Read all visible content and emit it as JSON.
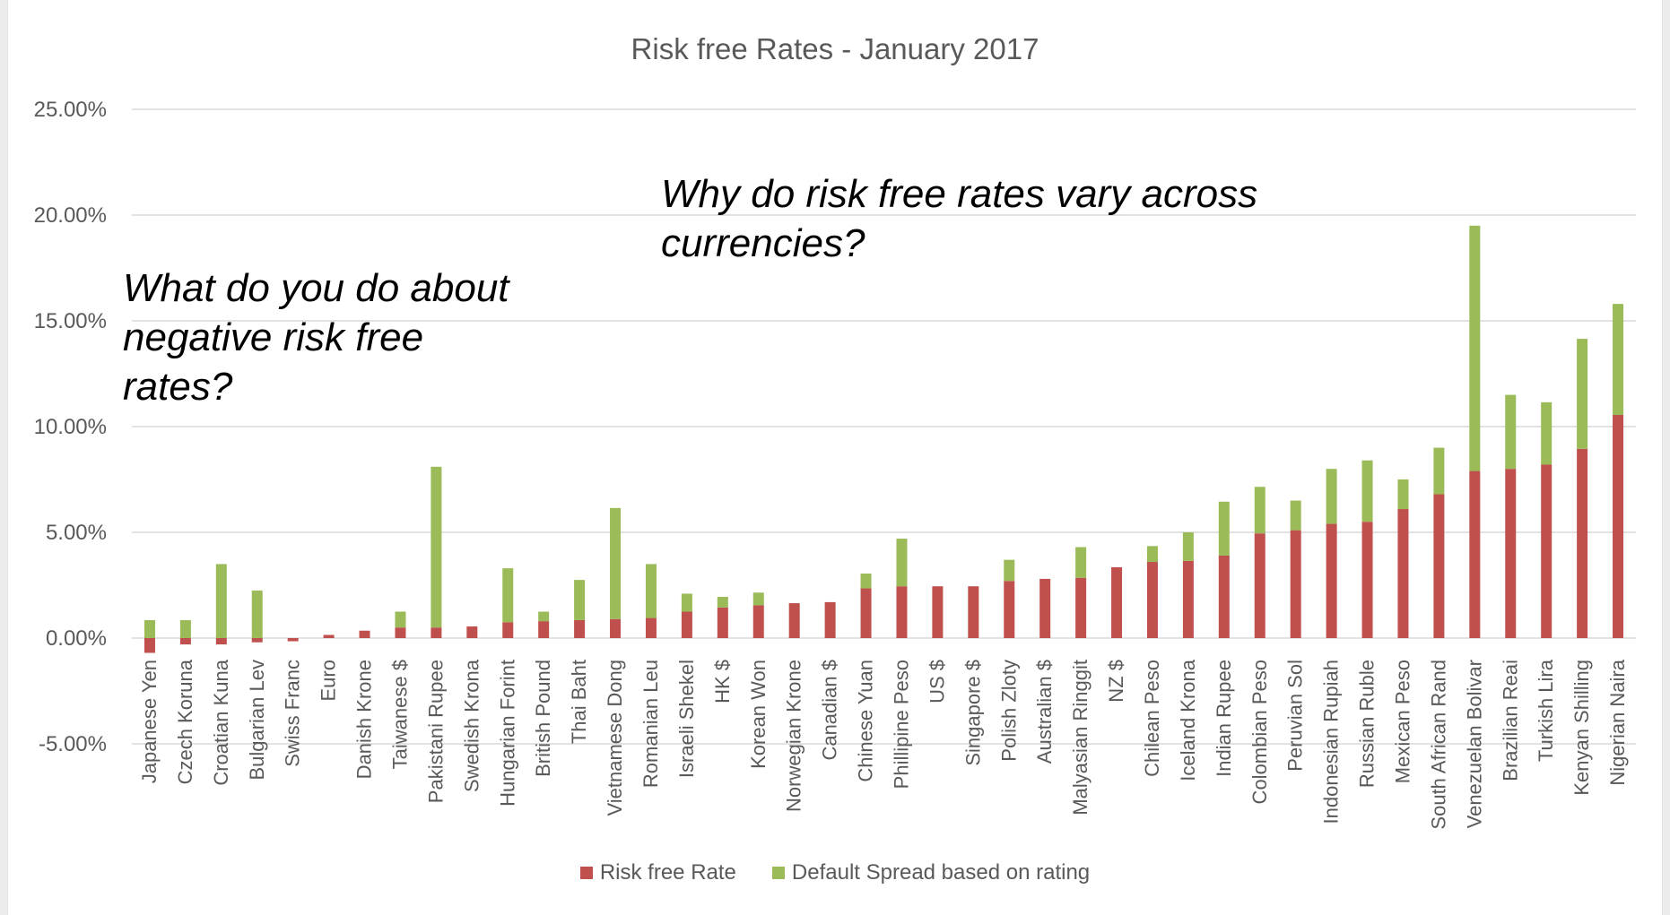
{
  "chart_data": {
    "type": "bar",
    "stacked": true,
    "title": "Risk free Rates - January 2017",
    "xlabel": "",
    "ylabel": "",
    "ylim": [
      -5,
      25
    ],
    "yticks": [
      25,
      20,
      15,
      10,
      5,
      0,
      -5
    ],
    "ytick_labels": [
      "25.00%",
      "20.00%",
      "15.00%",
      "10.00%",
      "5.00%",
      "0.00%",
      "-5.00%"
    ],
    "grid": true,
    "legend_position": "bottom",
    "categories": [
      "Japanese Yen",
      "Czech Koruna",
      "Croatian Kuna",
      "Bulgarian Lev",
      "Swiss Franc",
      "Euro",
      "Danish Krone",
      "Taiwanese $",
      "Pakistani Rupee",
      "Swedish Krona",
      "Hungarian Forint",
      "British Pound",
      "Thai Baht",
      "Vietnamese Dong",
      "Romanian Leu",
      "Israeli Shekel",
      "HK $",
      "Korean Won",
      "Norwegian Krone",
      "Canadian $",
      "Chinese Yuan",
      "Phillipine Peso",
      "US $",
      "Singapore $",
      "Polish Zloty",
      "Australian $",
      "Malyasian Ringgit",
      "NZ $",
      "Chilean Peso",
      "Iceland Krona",
      "Indian Rupee",
      "Colombian Peso",
      "Peruvian Sol",
      "Indonesian Rupiah",
      "Russian Ruble",
      "Mexican Peso",
      "South African Rand",
      "Venezuelan Bolivar",
      "Brazilian Reai",
      "Turkish Lira",
      "Kenyan Shilling",
      "Nigerian Naira"
    ],
    "series": [
      {
        "name": "Risk free Rate",
        "color": "#c0504d",
        "values": [
          -0.7,
          -0.3,
          -0.3,
          -0.2,
          -0.15,
          0.15,
          0.35,
          0.5,
          0.5,
          0.55,
          0.75,
          0.8,
          0.85,
          0.9,
          0.95,
          1.25,
          1.45,
          1.55,
          1.65,
          1.7,
          2.35,
          2.45,
          2.45,
          2.45,
          2.7,
          2.8,
          2.85,
          3.35,
          3.6,
          3.65,
          3.9,
          4.95,
          5.1,
          5.4,
          5.5,
          6.1,
          6.8,
          7.9,
          8.0,
          8.2,
          8.95,
          10.55
        ]
      },
      {
        "name": "Default Spread based on rating",
        "color": "#9bbb59",
        "values": [
          0.85,
          0.85,
          3.5,
          2.25,
          0,
          0,
          0,
          0.75,
          7.6,
          0,
          2.55,
          0.45,
          1.9,
          5.25,
          2.55,
          0.85,
          0.5,
          0.6,
          0,
          0,
          0.7,
          2.25,
          0,
          0,
          1.0,
          0,
          1.45,
          0,
          0.75,
          1.35,
          2.55,
          2.2,
          1.4,
          2.6,
          2.9,
          1.4,
          2.2,
          11.6,
          3.5,
          2.95,
          5.2,
          5.25
        ]
      }
    ],
    "annotations": [
      "What do you do about\nnegative risk free\nrates?",
      "Why do risk free rates vary across\ncurrencies?"
    ]
  }
}
